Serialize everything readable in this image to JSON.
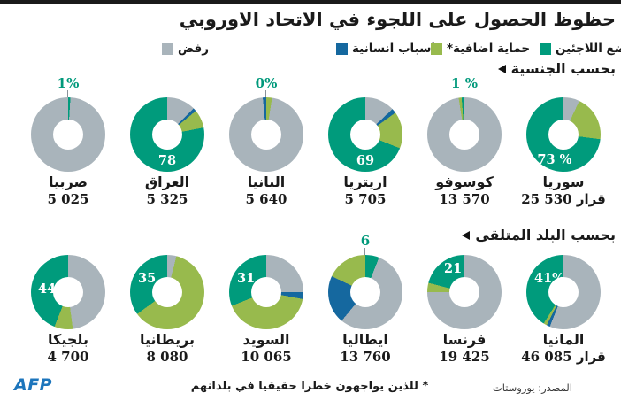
{
  "meta": {
    "title": "حظوظ الحصول على اللجوء في الاتحاد الاوروبي"
  },
  "colors": {
    "refugee": "#009b7c",
    "protection": "#98ba4d",
    "humanitarian": "#15689f",
    "rejection": "#a9b4bb",
    "callout_text": "#00997b",
    "callout_line": "#8a9299",
    "afp_blue": "#1c75bc",
    "topbar": "#1a1a1a"
  },
  "chart_data": {
    "type": "pie",
    "style": "donut-grid",
    "unit": "percent",
    "legend": [
      {
        "key": "rejection",
        "label": "رفض"
      },
      {
        "key": "humanitarian",
        "label": "اسباب انسانية"
      },
      {
        "key": "protection",
        "label": "حماية اضافية*"
      },
      {
        "key": "refugee",
        "label": "وضع اللاجئين"
      }
    ],
    "groups": [
      {
        "header": "بحسب الجنسية",
        "charts": [
          {
            "country": "صربيا",
            "decisions": "5 025",
            "value_label": "1%",
            "label_pos": "above",
            "segments": [
              {
                "key": "refugee",
                "pct": 1
              },
              {
                "key": "rejection",
                "pct": 99
              }
            ]
          },
          {
            "country": "العراق",
            "decisions": "5 325",
            "value_label": "78",
            "label_pos": "bottom",
            "segments": [
              {
                "key": "rejection",
                "pct": 12.5
              },
              {
                "key": "humanitarian",
                "pct": 1.5
              },
              {
                "key": "protection",
                "pct": 8
              },
              {
                "key": "refugee",
                "pct": 78
              }
            ]
          },
          {
            "country": "البانيا",
            "decisions": "5 640",
            "value_label": "0%",
            "label_pos": "above",
            "segments": [
              {
                "key": "protection",
                "pct": 2.5
              },
              {
                "key": "rejection",
                "pct": 96
              },
              {
                "key": "humanitarian",
                "pct": 1.5
              }
            ]
          },
          {
            "country": "اريتريا",
            "decisions": "5 705",
            "value_label": "69",
            "label_pos": "bottom",
            "segments": [
              {
                "key": "rejection",
                "pct": 13
              },
              {
                "key": "humanitarian",
                "pct": 2
              },
              {
                "key": "protection",
                "pct": 16
              },
              {
                "key": "refugee",
                "pct": 69
              }
            ]
          },
          {
            "country": "كوسوفو",
            "decisions": "13 570",
            "value_label": "1 %",
            "label_pos": "above",
            "segments": [
              {
                "key": "rejection",
                "pct": 97.5
              },
              {
                "key": "protection",
                "pct": 1.3
              },
              {
                "key": "refugee",
                "pct": 1.2
              }
            ]
          },
          {
            "country": "سوريا",
            "decisions": "25 530 قرار",
            "value_label": "73 %",
            "label_pos": "bottom-left",
            "segments": [
              {
                "key": "rejection",
                "pct": 7
              },
              {
                "key": "protection",
                "pct": 20
              },
              {
                "key": "refugee",
                "pct": 73
              }
            ]
          }
        ]
      },
      {
        "header": "بحسب البلد المتلقي",
        "charts": [
          {
            "country": "بلجيكا",
            "decisions": "4 700",
            "value_label": "44",
            "label_pos": "left",
            "segments": [
              {
                "key": "rejection",
                "pct": 48
              },
              {
                "key": "protection",
                "pct": 8
              },
              {
                "key": "refugee",
                "pct": 44
              }
            ]
          },
          {
            "country": "بريطانيا",
            "decisions": "8 080",
            "value_label": "35",
            "label_pos": "upper-left",
            "segments": [
              {
                "key": "rejection",
                "pct": 4
              },
              {
                "key": "protection",
                "pct": 61
              },
              {
                "key": "refugee",
                "pct": 35
              }
            ]
          },
          {
            "country": "السويد",
            "decisions": "10 065",
            "value_label": "31",
            "label_pos": "upper-left",
            "segments": [
              {
                "key": "rejection",
                "pct": 25
              },
              {
                "key": "humanitarian",
                "pct": 3
              },
              {
                "key": "protection",
                "pct": 41
              },
              {
                "key": "refugee",
                "pct": 31
              }
            ]
          },
          {
            "country": "ايطاليا",
            "decisions": "13 760",
            "value_label": "6",
            "label_pos": "above",
            "segments": [
              {
                "key": "refugee",
                "pct": 6
              },
              {
                "key": "rejection",
                "pct": 55
              },
              {
                "key": "humanitarian",
                "pct": 21
              },
              {
                "key": "protection",
                "pct": 18
              }
            ]
          },
          {
            "country": "فرنسا",
            "decisions": "19 425",
            "value_label": "21",
            "label_pos": "top-left",
            "segments": [
              {
                "key": "rejection",
                "pct": 75
              },
              {
                "key": "protection",
                "pct": 4
              },
              {
                "key": "refugee",
                "pct": 21
              }
            ]
          },
          {
            "country": "المانيا",
            "decisions": "46 085 قرار",
            "value_label": "41%",
            "label_pos": "upper-left",
            "segments": [
              {
                "key": "rejection",
                "pct": 56
              },
              {
                "key": "humanitarian",
                "pct": 1.5
              },
              {
                "key": "protection",
                "pct": 1.5
              },
              {
                "key": "refugee",
                "pct": 41
              }
            ]
          }
        ]
      }
    ]
  },
  "footer": {
    "logo": "AFP",
    "footnote": "* للذين يواجهون خطرا حقيقيا في بلدانهم",
    "source": "المصدر: يوروستات"
  }
}
